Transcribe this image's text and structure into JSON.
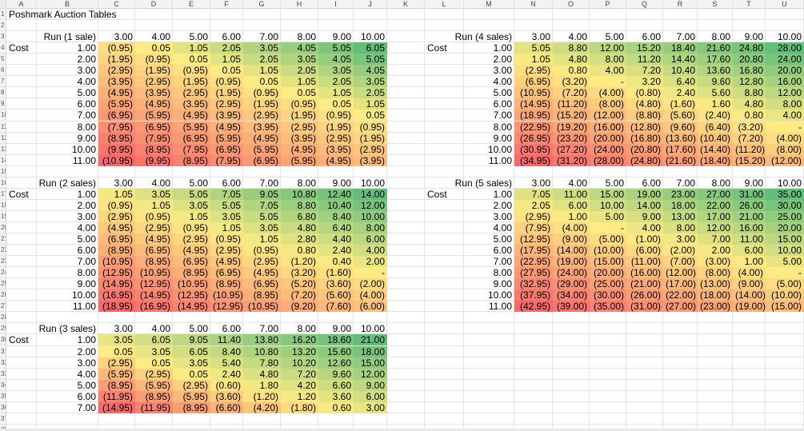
{
  "sheet_title": "Poshmark Auction Tables",
  "columns": [
    "A",
    "B",
    "C",
    "D",
    "E",
    "F",
    "G",
    "H",
    "I",
    "J",
    "K",
    "L",
    "M",
    "N",
    "O",
    "P",
    "Q",
    "R",
    "S",
    "T",
    "U"
  ],
  "colors": {
    "red": "#f8696b",
    "yellow": "#ffeb84",
    "green": "#63be7b"
  },
  "tables": [
    {
      "id": "run1",
      "title": "Run (1 sale)",
      "cost_label": "Cost",
      "headers": [
        "3.00",
        "4.00",
        "5.00",
        "6.00",
        "7.00",
        "8.00",
        "9.00",
        "10.00"
      ],
      "costs": [
        "1.00",
        "2.00",
        "3.00",
        "4.00",
        "5.00",
        "6.00",
        "7.00",
        "8.00",
        "9.00",
        "10.00",
        "11.00"
      ],
      "rows": [
        [
          "(0.95)",
          "0.05",
          "1.05",
          "2.05",
          "3.05",
          "4.05",
          "5.05",
          "6.05"
        ],
        [
          "(1.95)",
          "(0.95)",
          "0.05",
          "1.05",
          "2.05",
          "3.05",
          "4.05",
          "5.05"
        ],
        [
          "(2.95)",
          "(1.95)",
          "(0.95)",
          "0.05",
          "1.05",
          "2.05",
          "3.05",
          "4.05"
        ],
        [
          "(3.95)",
          "(2.95)",
          "(1.95)",
          "(0.95)",
          "0.05",
          "1.05",
          "2.05",
          "3.05"
        ],
        [
          "(4.95)",
          "(3.95)",
          "(2.95)",
          "(1.95)",
          "(0.95)",
          "0.05",
          "1.05",
          "2.05"
        ],
        [
          "(5.95)",
          "(4.95)",
          "(3.95)",
          "(2.95)",
          "(1.95)",
          "(0.95)",
          "0.05",
          "1.05"
        ],
        [
          "(6.95)",
          "(5.95)",
          "(4.95)",
          "(3.95)",
          "(2.95)",
          "(1.95)",
          "(0.95)",
          "0.05"
        ],
        [
          "(7.95)",
          "(6.95)",
          "(5.95)",
          "(4.95)",
          "(3.95)",
          "(2.95)",
          "(1.95)",
          "(0.95)"
        ],
        [
          "(8.95)",
          "(7.95)",
          "(6.95)",
          "(5.95)",
          "(4.95)",
          "(3.95)",
          "(2.95)",
          "(1.95)"
        ],
        [
          "(9.95)",
          "(8.95)",
          "(7.95)",
          "(6.95)",
          "(5.95)",
          "(4.95)",
          "(3.95)",
          "(2.95)"
        ],
        [
          "(10.95)",
          "(9.95)",
          "(8.95)",
          "(7.95)",
          "(6.95)",
          "(5.95)",
          "(4.95)",
          "(3.95)"
        ]
      ]
    },
    {
      "id": "run2",
      "title": "Run (2 sales)",
      "cost_label": "Cost",
      "headers": [
        "3.00",
        "4.00",
        "5.00",
        "6.00",
        "7.00",
        "8.00",
        "9.00",
        "10.00"
      ],
      "costs": [
        "1.00",
        "2.00",
        "3.00",
        "4.00",
        "5.00",
        "6.00",
        "7.00",
        "8.00",
        "9.00",
        "10.00",
        "11.00"
      ],
      "rows": [
        [
          "1.05",
          "3.05",
          "5.05",
          "7.05",
          "9.05",
          "10.80",
          "12.40",
          "14.00"
        ],
        [
          "(0.95)",
          "1.05",
          "3.05",
          "5.05",
          "7.05",
          "8.80",
          "10.40",
          "12.00"
        ],
        [
          "(2.95)",
          "(0.95)",
          "1.05",
          "3.05",
          "5.05",
          "6.80",
          "8.40",
          "10.00"
        ],
        [
          "(4.95)",
          "(2.95)",
          "(0.95)",
          "1.05",
          "3.05",
          "4.80",
          "6.40",
          "8.00"
        ],
        [
          "(6.95)",
          "(4.95)",
          "(2.95)",
          "(0.95)",
          "1.05",
          "2.80",
          "4.40",
          "6.00"
        ],
        [
          "(8.95)",
          "(6.95)",
          "(4.95)",
          "(2.95)",
          "(0.95)",
          "0.80",
          "2.40",
          "4.00"
        ],
        [
          "(10.95)",
          "(8.95)",
          "(6.95)",
          "(4.95)",
          "(2.95)",
          "(1.20)",
          "0.40",
          "2.00"
        ],
        [
          "(12.95)",
          "(10.95)",
          "(8.95)",
          "(6.95)",
          "(4.95)",
          "(3.20)",
          "(1.60)",
          "-"
        ],
        [
          "(14.95)",
          "(12.95)",
          "(10.95)",
          "(8.95)",
          "(6.95)",
          "(5.20)",
          "(3.60)",
          "(2.00)"
        ],
        [
          "(16.95)",
          "(14.95)",
          "(12.95)",
          "(10.95)",
          "(8.95)",
          "(7.20)",
          "(5.60)",
          "(4.00)"
        ],
        [
          "(18.95)",
          "(16.95)",
          "(14.95)",
          "(12.95)",
          "(10.95)",
          "(9.20)",
          "(7.60)",
          "(6.00)"
        ]
      ]
    },
    {
      "id": "run3",
      "title": "Run (3 sales)",
      "cost_label": "Cost",
      "headers": [
        "3.00",
        "4.00",
        "5.00",
        "6.00",
        "7.00",
        "8.00",
        "9.00",
        "10.00"
      ],
      "costs": [
        "1.00",
        "2.00",
        "3.00",
        "4.00",
        "5.00",
        "6.00",
        "7.00"
      ],
      "rows": [
        [
          "3.05",
          "6.05",
          "9.05",
          "11.40",
          "13.80",
          "16.20",
          "18.60",
          "21.00"
        ],
        [
          "0.05",
          "3.05",
          "6.05",
          "8.40",
          "10.80",
          "13.20",
          "15.60",
          "18.00"
        ],
        [
          "(2.95)",
          "0.05",
          "3.05",
          "5.40",
          "7.80",
          "10.20",
          "12.60",
          "15.00"
        ],
        [
          "(5.95)",
          "(2.95)",
          "0.05",
          "2.40",
          "4.80",
          "7.20",
          "9.60",
          "12.00"
        ],
        [
          "(8.95)",
          "(5.95)",
          "(2.95)",
          "(0.60)",
          "1.80",
          "4.20",
          "6.60",
          "9.00"
        ],
        [
          "(11.95)",
          "(8.95)",
          "(5.95)",
          "(3.60)",
          "(1.20)",
          "1.20",
          "3.60",
          "6.00"
        ],
        [
          "(14.95)",
          "(11.95)",
          "(8.95)",
          "(6.60)",
          "(4.20)",
          "(1.80)",
          "0.60",
          "3.00"
        ]
      ]
    },
    {
      "id": "run4",
      "title": "Run (4 sales)",
      "cost_label": "Cost",
      "headers": [
        "3.00",
        "4.00",
        "5.00",
        "6.00",
        "7.00",
        "8.00",
        "9.00",
        "10.00"
      ],
      "costs": [
        "1.00",
        "2.00",
        "3.00",
        "4.00",
        "5.00",
        "6.00",
        "7.00",
        "8.00",
        "9.00",
        "10.00",
        "11.00"
      ],
      "rows": [
        [
          "5.05",
          "8.80",
          "12.00",
          "15.20",
          "18.40",
          "21.60",
          "24.80",
          "28.00"
        ],
        [
          "1.05",
          "4.80",
          "8.00",
          "11.20",
          "14.40",
          "17.60",
          "20.80",
          "24.00"
        ],
        [
          "(2.95)",
          "0.80",
          "4.00",
          "7.20",
          "10.40",
          "13.60",
          "16.80",
          "20.00"
        ],
        [
          "(6.95)",
          "(3.20)",
          "-",
          "3.20",
          "6.40",
          "9.60",
          "12.80",
          "16.00"
        ],
        [
          "(10.95)",
          "(7.20)",
          "(4.00)",
          "(0.80)",
          "2.40",
          "5.60",
          "8.80",
          "12.00"
        ],
        [
          "(14.95)",
          "(11.20)",
          "(8.00)",
          "(4.80)",
          "(1.60)",
          "1.60",
          "4.80",
          "8.00"
        ],
        [
          "(18.95)",
          "(15.20)",
          "(12.00)",
          "(8.80)",
          "(5.60)",
          "(2.40)",
          "0.80",
          "4.00"
        ],
        [
          "(22.95)",
          "(19.20)",
          "(16.00)",
          "(12.80)",
          "(9.60)",
          "(6.40)",
          "(3.20)",
          "-"
        ],
        [
          "(26.95)",
          "(23.20)",
          "(20.00)",
          "(16.80)",
          "(13.60)",
          "(10.40)",
          "(7.20)",
          "(4.00)"
        ],
        [
          "(30.95)",
          "(27.20)",
          "(24.00)",
          "(20.80)",
          "(17.60)",
          "(14.40)",
          "(11.20)",
          "(8.00)"
        ],
        [
          "(34.95)",
          "(31.20)",
          "(28.00)",
          "(24.80)",
          "(21.60)",
          "(18.40)",
          "(15.20)",
          "(12.00)"
        ]
      ]
    },
    {
      "id": "run5",
      "title": "Run (5 sales)",
      "cost_label": "Cost",
      "headers": [
        "3.00",
        "4.00",
        "5.00",
        "6.00",
        "7.00",
        "8.00",
        "9.00",
        "10.00"
      ],
      "costs": [
        "1.00",
        "2.00",
        "3.00",
        "4.00",
        "5.00",
        "6.00",
        "7.00",
        "8.00",
        "9.00",
        "10.00",
        "11.00"
      ],
      "rows": [
        [
          "7.05",
          "11.00",
          "15.00",
          "19.00",
          "23.00",
          "27.00",
          "31.00",
          "35.00"
        ],
        [
          "2.05",
          "6.00",
          "10.00",
          "14.00",
          "18.00",
          "22.00",
          "26.00",
          "30.00"
        ],
        [
          "(2.95)",
          "1.00",
          "5.00",
          "9.00",
          "13.00",
          "17.00",
          "21.00",
          "25.00"
        ],
        [
          "(7.95)",
          "(4.00)",
          "-",
          "4.00",
          "8.00",
          "12.00",
          "16.00",
          "20.00"
        ],
        [
          "(12.95)",
          "(9.00)",
          "(5.00)",
          "(1.00)",
          "3.00",
          "7.00",
          "11.00",
          "15.00"
        ],
        [
          "(17.95)",
          "(14.00)",
          "(10.00)",
          "(6.00)",
          "(2.00)",
          "2.00",
          "6.00",
          "10.00"
        ],
        [
          "(22.95)",
          "(19.00)",
          "(15.00)",
          "(11.00)",
          "(7.00)",
          "(3.00)",
          "1.00",
          "5.00"
        ],
        [
          "(27.95)",
          "(24.00)",
          "(20.00)",
          "(16.00)",
          "(12.00)",
          "(8.00)",
          "(4.00)",
          "-"
        ],
        [
          "(32.95)",
          "(29.00)",
          "(25.00)",
          "(21.00)",
          "(17.00)",
          "(13.00)",
          "(9.00)",
          "(5.00)"
        ],
        [
          "(37.95)",
          "(34.00)",
          "(30.00)",
          "(26.00)",
          "(22.00)",
          "(18.00)",
          "(14.00)",
          "(10.00)"
        ],
        [
          "(42.95)",
          "(39.00)",
          "(35.00)",
          "(31.00)",
          "(27.00)",
          "(23.00)",
          "(19.00)",
          "(15.00)"
        ]
      ]
    }
  ]
}
